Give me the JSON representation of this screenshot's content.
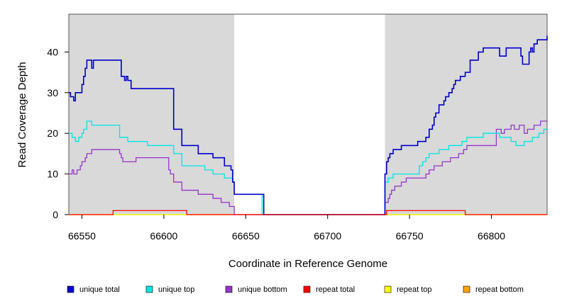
{
  "chart_data": {
    "type": "line",
    "xlabel": "Coordinate in Reference Genome",
    "ylabel": "Read Coverage Depth",
    "xlim": [
      66542,
      66834
    ],
    "ylim": [
      0,
      48
    ],
    "x_ticks": [
      66550,
      66600,
      66650,
      66700,
      66750,
      66800
    ],
    "y_ticks": [
      0,
      10,
      20,
      30,
      40
    ],
    "shaded_regions": [
      [
        66542,
        66643
      ],
      [
        66735,
        66834
      ]
    ],
    "series": [
      {
        "name": "unique total",
        "color": "#0000CC",
        "x": [
          66542,
          66543,
          66545,
          66546,
          66547,
          66550,
          66551,
          66552,
          66553,
          66554,
          66556,
          66557,
          66559,
          66574,
          66576,
          66577,
          66578,
          66580,
          66606,
          66611,
          66621,
          66630,
          66637,
          66641,
          66642,
          66643,
          66661,
          66735,
          66736,
          66737,
          66738,
          66740,
          66745,
          66755,
          66760,
          66762,
          66764,
          66765,
          66766,
          66768,
          66769,
          66771,
          66772,
          66773,
          66774,
          66776,
          66777,
          66778,
          66779,
          66781,
          66783,
          66784,
          66787,
          66792,
          66795,
          66805,
          66809,
          66810,
          66812,
          66813,
          66815,
          66818,
          66819,
          66820,
          66823,
          66824,
          66825,
          66826,
          66827,
          66828,
          66831,
          66834
        ],
        "y": [
          30,
          29,
          28,
          30,
          30,
          32,
          34,
          36,
          38,
          38,
          36,
          38,
          38,
          34,
          33,
          34,
          33,
          31,
          21,
          17,
          15,
          14,
          12,
          11,
          8,
          5,
          0,
          10,
          13,
          14,
          15,
          16,
          17,
          18,
          19,
          21,
          22,
          24,
          25,
          27,
          27,
          28,
          29,
          29,
          30,
          31,
          32,
          33,
          33,
          34,
          34,
          35,
          38,
          40,
          41,
          39,
          41,
          41,
          41,
          41,
          41,
          39,
          37,
          37,
          40,
          41,
          40,
          42,
          42,
          43,
          43,
          44
        ]
      },
      {
        "name": "unique top",
        "color": "#00E5E5",
        "x": [
          66542,
          66544,
          66546,
          66548,
          66550,
          66551,
          66553,
          66556,
          66573,
          66578,
          66590,
          66606,
          66611,
          66621,
          66625,
          66630,
          66637,
          66642,
          66643,
          66660,
          66735,
          66737,
          66738,
          66740,
          66745,
          66754,
          66756,
          66758,
          66760,
          66762,
          66767,
          66768,
          66770,
          66774,
          66778,
          66782,
          66785,
          66795,
          66805,
          66808,
          66812,
          66815,
          66818,
          66820,
          66825,
          66829,
          66832
        ],
        "y": [
          20,
          19,
          18,
          19,
          20,
          21,
          23,
          22,
          19,
          18,
          17,
          15,
          12,
          12,
          11,
          10,
          9,
          8,
          5,
          0,
          8,
          9,
          9,
          10,
          10,
          10,
          12,
          13,
          14,
          15,
          15,
          16,
          16,
          17,
          17,
          18,
          19,
          20,
          19,
          19,
          18,
          17,
          17,
          18,
          19,
          20,
          21
        ]
      },
      {
        "name": "unique bottom",
        "color": "#9933CC",
        "x": [
          66542,
          66544,
          66545,
          66547,
          66549,
          66550,
          66552,
          66553,
          66554,
          66556,
          66573,
          66574,
          66575,
          66583,
          66603,
          66604,
          66606,
          66611,
          66621,
          66630,
          66635,
          66640,
          66643,
          66735,
          66736,
          66737,
          66738,
          66739,
          66741,
          66743,
          66745,
          66748,
          66752,
          66760,
          66762,
          66765,
          66770,
          66775,
          66780,
          66783,
          66785,
          66803,
          66806,
          66808,
          66812,
          66814,
          66817,
          66820,
          66822,
          66826,
          66830
        ],
        "y": [
          10,
          11,
          10,
          11,
          12,
          13,
          14,
          15,
          15,
          16,
          15,
          14,
          13,
          14,
          11,
          10,
          8,
          6,
          5,
          4,
          3,
          2,
          0,
          3,
          3,
          4,
          5,
          6,
          7,
          7,
          8,
          9,
          9,
          10,
          11,
          12,
          13,
          14,
          15,
          16,
          17,
          21,
          20,
          21,
          22,
          21,
          22,
          20,
          21,
          22,
          23
        ]
      },
      {
        "name": "repeat total",
        "color": "#FF0000",
        "x": [
          66542,
          66561,
          66569,
          66614,
          66736,
          66784,
          66834
        ],
        "y": [
          0,
          0,
          1,
          0,
          1,
          0,
          0
        ]
      },
      {
        "name": "repeat top",
        "color": "#FFFF00",
        "x": [
          66542,
          66834
        ],
        "y": [
          0,
          0
        ]
      },
      {
        "name": "repeat bottom",
        "color": "#FFA500",
        "x": [
          66542,
          66834
        ],
        "y": [
          0,
          0
        ]
      }
    ],
    "legend_placement": "bottom",
    "grid": false
  }
}
